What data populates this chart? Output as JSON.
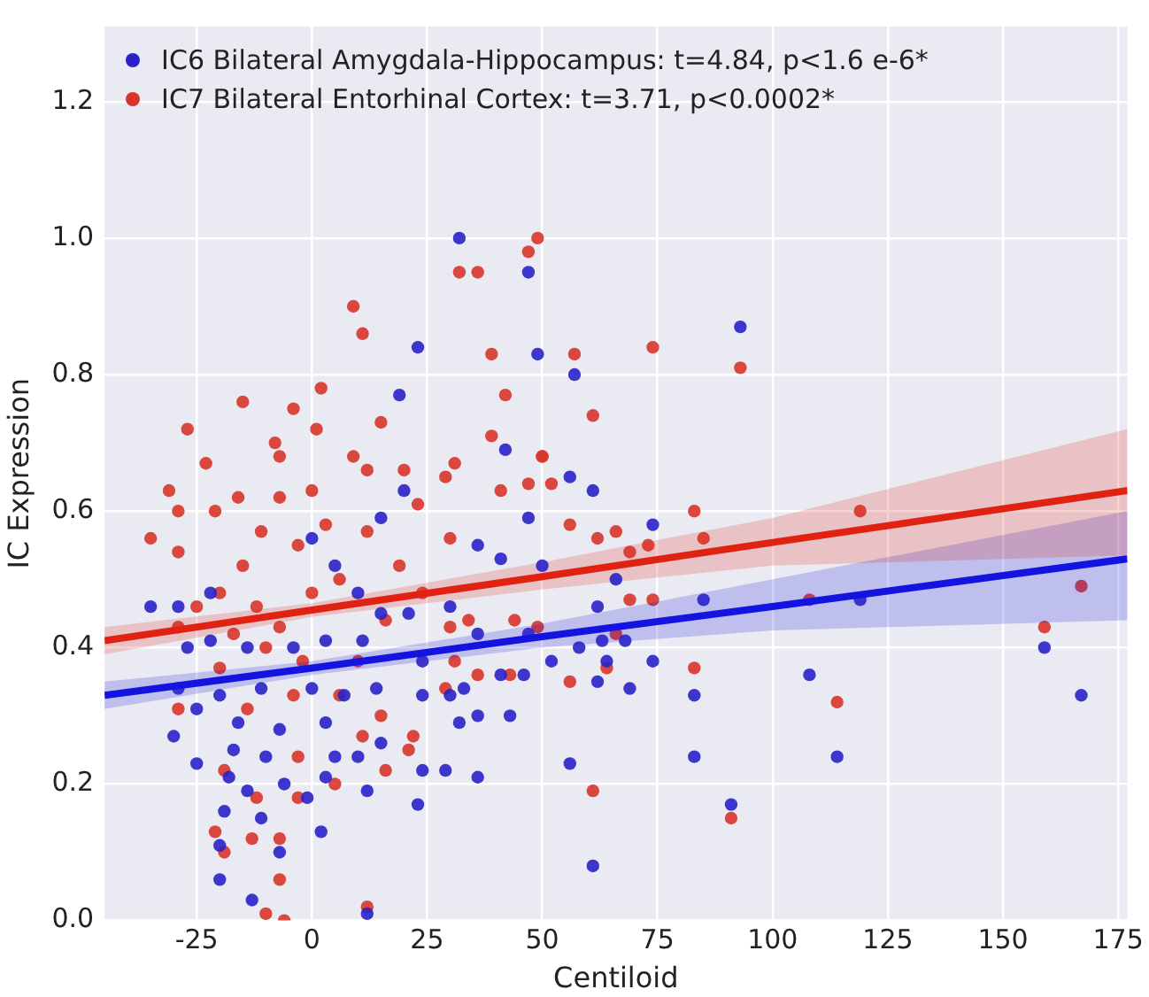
{
  "chart_data": {
    "type": "scatter",
    "xlabel": "Centiloid",
    "ylabel": "IC Expression",
    "xlim": [
      -45,
      177
    ],
    "ylim": [
      0,
      1.31
    ],
    "xticks": [
      -25,
      0,
      25,
      50,
      75,
      100,
      125,
      150,
      175
    ],
    "yticks": [
      {
        "value": 0,
        "label": "0.0"
      },
      {
        "value": 0.2,
        "label": "0.2"
      },
      {
        "value": 0.4,
        "label": "0.4"
      },
      {
        "value": 0.6,
        "label": "0.6"
      },
      {
        "value": 0.8,
        "label": "0.8"
      },
      {
        "value": 1,
        "label": "1.0"
      },
      {
        "value": 1.2,
        "label": "1.2"
      }
    ],
    "grid": true,
    "legend": "top left",
    "marker": "circle",
    "series": [
      {
        "name": "IC6 Bilateral Amygdala-Hippocampus: t=4.84, p<1.6 e-6*",
        "color": "#2a22c8",
        "x": [
          47,
          93,
          49,
          57,
          56,
          61,
          47,
          74,
          50,
          66,
          62,
          85,
          119,
          58,
          63,
          68,
          74,
          52,
          64,
          62,
          69,
          83,
          108,
          159,
          167,
          56,
          83,
          114,
          91,
          61,
          32,
          23,
          19,
          42,
          20,
          15,
          36,
          41,
          0,
          -35,
          -29,
          -22,
          5,
          10,
          15,
          21,
          30,
          36,
          47,
          -27,
          -22,
          -14,
          -4,
          3,
          11,
          24,
          33,
          41,
          46,
          -29,
          -20,
          -11,
          0,
          7,
          14,
          24,
          32,
          30,
          36,
          43,
          -25,
          -16,
          -7,
          3,
          15,
          -30,
          -17,
          -10,
          5,
          10,
          -25,
          -18,
          -14,
          -6,
          3,
          24,
          29,
          36,
          12,
          -1,
          23,
          -19,
          -11,
          2,
          -20,
          -7,
          -20,
          -13,
          12
        ],
        "values": [
          0.95,
          0.87,
          0.83,
          0.8,
          0.65,
          0.63,
          0.59,
          0.58,
          0.52,
          0.5,
          0.46,
          0.47,
          0.47,
          0.4,
          0.41,
          0.41,
          0.38,
          0.38,
          0.38,
          0.35,
          0.34,
          0.33,
          0.36,
          0.4,
          0.33,
          0.23,
          0.24,
          0.24,
          0.17,
          0.08,
          1,
          0.84,
          0.77,
          0.69,
          0.63,
          0.59,
          0.55,
          0.53,
          0.56,
          0.46,
          0.46,
          0.48,
          0.52,
          0.48,
          0.45,
          0.45,
          0.46,
          0.42,
          0.42,
          0.4,
          0.41,
          0.4,
          0.4,
          0.41,
          0.41,
          0.38,
          0.34,
          0.36,
          0.36,
          0.34,
          0.33,
          0.34,
          0.34,
          0.33,
          0.34,
          0.33,
          0.29,
          0.33,
          0.3,
          0.3,
          0.31,
          0.29,
          0.28,
          0.29,
          0.26,
          0.27,
          0.25,
          0.24,
          0.24,
          0.24,
          0.23,
          0.21,
          0.19,
          0.2,
          0.21,
          0.22,
          0.22,
          0.21,
          0.19,
          0.18,
          0.17,
          0.16,
          0.15,
          0.13,
          0.11,
          0.1,
          0.06,
          0.03,
          0.01
        ]
      },
      {
        "name": "IC7 Bilateral Entorhinal Cortex: t=3.71, p<0.0002*",
        "color": "#d8352a",
        "x": [
          49,
          57,
          74,
          93,
          61,
          50,
          52,
          83,
          119,
          56,
          62,
          66,
          85,
          73,
          69,
          74,
          69,
          49,
          167,
          159,
          83,
          64,
          56,
          114,
          61,
          91,
          66,
          108,
          32,
          36,
          47,
          9,
          11,
          39,
          -15,
          -4,
          2,
          -27,
          1,
          -8,
          -7,
          15,
          42,
          39,
          -23,
          9,
          12,
          20,
          31,
          29,
          50,
          47,
          41,
          -31,
          -29,
          -35,
          -29,
          0,
          3,
          23,
          30,
          -21,
          -16,
          -7,
          -11,
          -15,
          -3,
          -20,
          -12,
          -7,
          -17,
          0,
          6,
          12,
          19,
          24,
          16,
          -25,
          -29,
          -10,
          -2,
          -20,
          10,
          30,
          34,
          44,
          -4,
          6,
          -14,
          15,
          21,
          11,
          -29,
          -3,
          16,
          5,
          -12,
          -3,
          -19,
          -21,
          -13,
          -19,
          -7,
          -7,
          -10,
          -6,
          12,
          36,
          43,
          31,
          29,
          22
        ],
        "values": [
          1,
          0.83,
          0.84,
          0.81,
          0.74,
          0.68,
          0.64,
          0.6,
          0.6,
          0.58,
          0.56,
          0.57,
          0.56,
          0.55,
          0.54,
          0.47,
          0.47,
          0.43,
          0.49,
          0.43,
          0.37,
          0.37,
          0.35,
          0.32,
          0.19,
          0.15,
          0.42,
          0.47,
          0.95,
          0.95,
          0.98,
          0.9,
          0.86,
          0.83,
          0.76,
          0.75,
          0.78,
          0.72,
          0.72,
          0.7,
          0.68,
          0.73,
          0.77,
          0.71,
          0.67,
          0.68,
          0.66,
          0.66,
          0.67,
          0.65,
          0.68,
          0.64,
          0.63,
          0.63,
          0.6,
          0.56,
          0.54,
          0.63,
          0.58,
          0.61,
          0.56,
          0.6,
          0.62,
          0.62,
          0.57,
          0.52,
          0.55,
          0.48,
          0.46,
          0.43,
          0.42,
          0.48,
          0.5,
          0.57,
          0.52,
          0.48,
          0.44,
          0.46,
          0.43,
          0.4,
          0.38,
          0.37,
          0.38,
          0.43,
          0.44,
          0.44,
          0.33,
          0.33,
          0.31,
          0.3,
          0.25,
          0.27,
          0.31,
          0.24,
          0.22,
          0.2,
          0.18,
          0.18,
          0.22,
          0.13,
          0.12,
          0.1,
          0.12,
          0.06,
          0.01,
          0,
          0.02,
          0.36,
          0.36,
          0.38,
          0.34,
          0.27
        ]
      },
      {
        "type": "line",
        "marker": "none",
        "color": "#1414e0",
        "x": [
          -45,
          0,
          50,
          100,
          177
        ],
        "values": [
          0.33,
          0.37,
          0.416,
          0.46,
          0.53
        ],
        "lower": [
          0.31,
          0.36,
          0.4,
          0.425,
          0.44
        ],
        "upper": [
          0.35,
          0.38,
          0.435,
          0.5,
          0.6
        ]
      },
      {
        "type": "line",
        "marker": "none",
        "color": "#e02212",
        "x": [
          -45,
          0,
          50,
          100,
          177
        ],
        "values": [
          0.41,
          0.455,
          0.504,
          0.554,
          0.63
        ],
        "lower": [
          0.39,
          0.445,
          0.485,
          0.52,
          0.535
        ],
        "upper": [
          0.43,
          0.465,
          0.525,
          0.59,
          0.72
        ]
      }
    ]
  }
}
